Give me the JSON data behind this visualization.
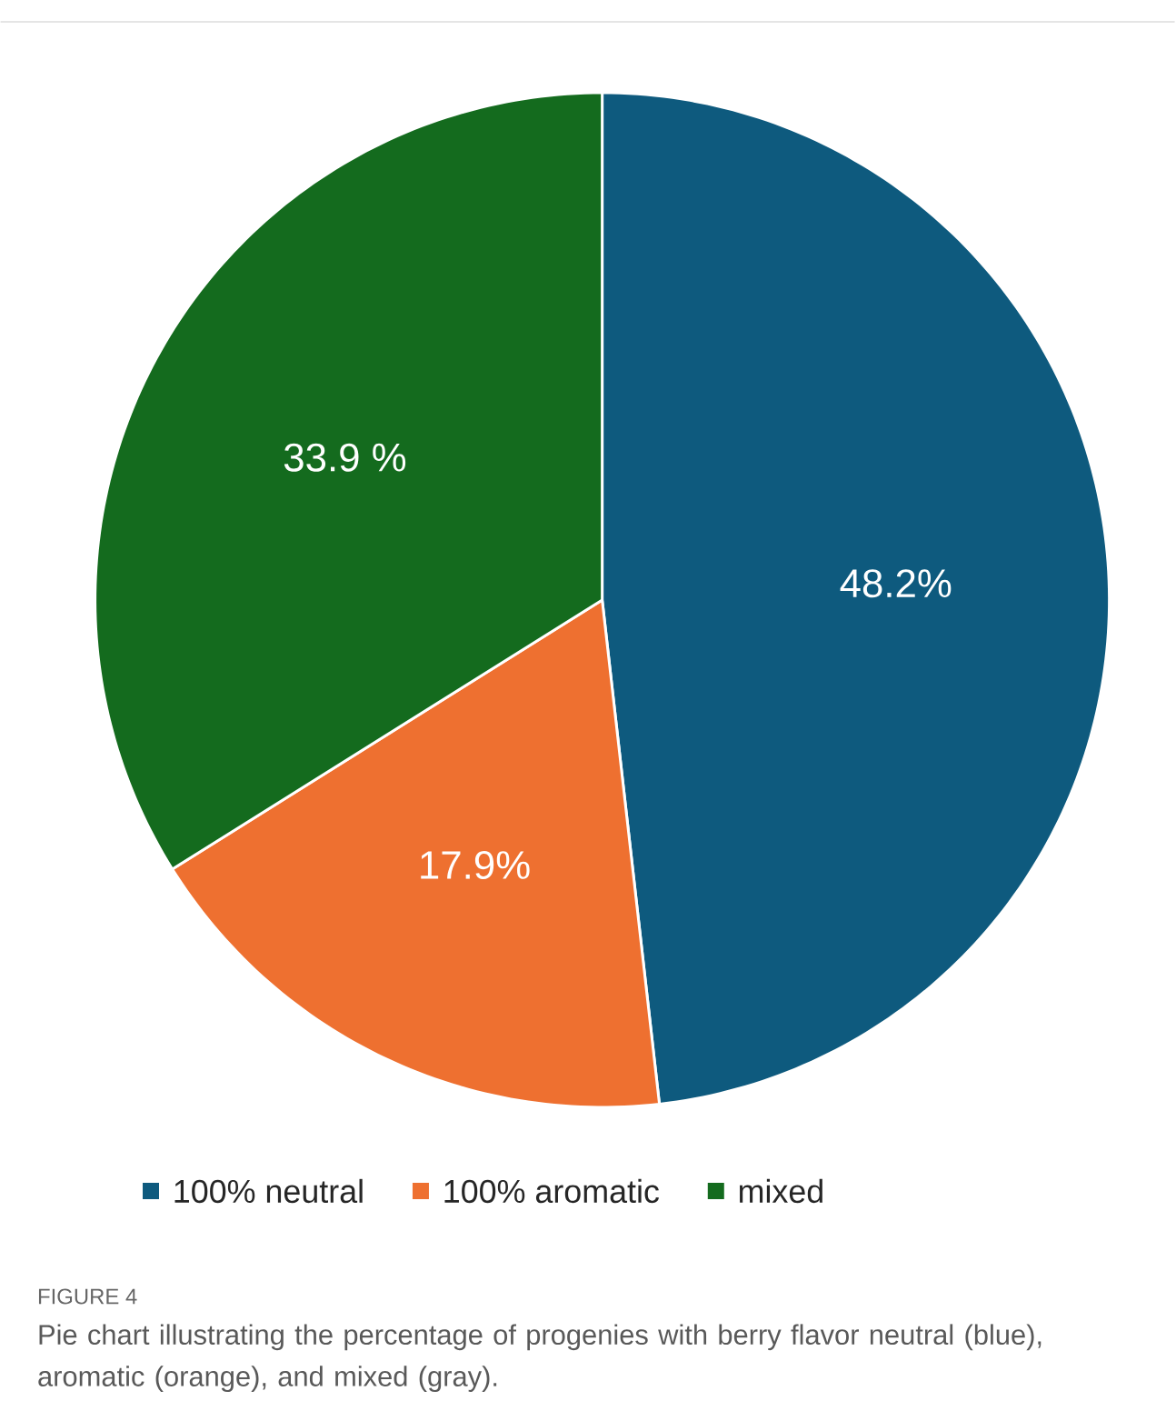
{
  "chart_data": {
    "type": "pie",
    "categories": [
      "100% neutral",
      "100% aromatic",
      "mixed"
    ],
    "values": [
      48.2,
      17.9,
      33.9
    ],
    "value_labels": [
      "48.2%",
      "17.9%",
      "33.9 %"
    ],
    "colors": [
      "#0e5a7e",
      "#ee7030",
      "#146b1e"
    ],
    "legend": "bottom",
    "annotations": [
      "FIGURE 4",
      "Pie chart illustrating the percentage of progenies with berry flavor neutral (blue), aromatic (orange), and mixed (gray)."
    ]
  }
}
